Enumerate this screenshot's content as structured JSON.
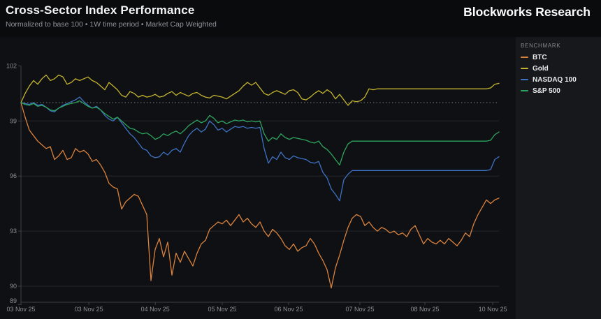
{
  "header": {
    "title": "Cross-Sector Index Performance",
    "subtitle": "Normalized to base 100 • 1W time period • Market Cap Weighted",
    "brand": "Blockworks Research"
  },
  "legend": {
    "title": "BENCHMARK"
  },
  "colors": {
    "page_bg": "#0a0b0c",
    "card_bg": "#17181b",
    "plot_bg": "#0f1013",
    "grid": "#24262b",
    "baseline": "#797c81",
    "axis": "#3e4146",
    "tick_text": "#8b8e94"
  },
  "chart_data": {
    "type": "line",
    "title": "Cross-Sector Index Performance",
    "subtitle": "Normalized to base 100 • 1W time period • Market Cap Weighted",
    "normalized_base": 100,
    "time_period": "1W",
    "weighting": "Market Cap Weighted",
    "grid": true,
    "legend_position": "right",
    "legend_title": "BENCHMARK",
    "ylim": [
      89,
      102
    ],
    "y_ticks": [
      102,
      99,
      96,
      93,
      90,
      89
    ],
    "baseline_value": 100,
    "x_ticks": [
      {
        "label": "03 Nov 25",
        "f": 0.0
      },
      {
        "label": "03 Nov 25",
        "f": 0.142
      },
      {
        "label": "04 Nov 25",
        "f": 0.281
      },
      {
        "label": "05 Nov 25",
        "f": 0.421
      },
      {
        "label": "06 Nov 25",
        "f": 0.56
      },
      {
        "label": "07 Nov 25",
        "f": 0.709
      },
      {
        "label": "08 Nov 25",
        "f": 0.845
      },
      {
        "label": "10 Nov 25",
        "f": 0.987
      }
    ],
    "series": [
      {
        "name": "BTC",
        "color": "#d9823d",
        "values": [
          100.0,
          99.2,
          98.5,
          98.2,
          97.9,
          97.7,
          97.5,
          97.6,
          96.9,
          97.1,
          97.4,
          96.9,
          97.0,
          97.5,
          97.3,
          97.4,
          97.2,
          96.8,
          96.9,
          96.6,
          96.2,
          95.6,
          95.4,
          95.3,
          94.2,
          94.6,
          94.8,
          95.0,
          94.9,
          94.4,
          93.9,
          90.3,
          92.0,
          92.6,
          91.6,
          92.4,
          90.6,
          91.8,
          91.3,
          91.9,
          91.5,
          91.1,
          91.8,
          92.3,
          92.5,
          93.1,
          93.3,
          93.5,
          93.4,
          93.6,
          93.3,
          93.6,
          93.9,
          93.5,
          93.7,
          93.4,
          93.2,
          93.5,
          93.0,
          92.7,
          93.1,
          92.9,
          92.6,
          92.2,
          92.0,
          92.3,
          91.9,
          92.1,
          92.2,
          92.6,
          92.3,
          91.8,
          91.4,
          90.9,
          89.9,
          91.0,
          91.7,
          92.5,
          93.2,
          93.7,
          93.9,
          93.8,
          93.3,
          93.5,
          93.2,
          93.0,
          93.2,
          93.1,
          92.9,
          93.0,
          92.8,
          92.9,
          92.7,
          93.1,
          93.3,
          92.8,
          92.3,
          92.6,
          92.4,
          92.3,
          92.5,
          92.3,
          92.6,
          92.4,
          92.2,
          92.5,
          92.9,
          92.7,
          93.4,
          93.9,
          94.3,
          94.7,
          94.5,
          94.7,
          94.8
        ]
      },
      {
        "name": "Gold",
        "color": "#c4b42f",
        "values": [
          100.0,
          100.5,
          100.9,
          101.2,
          101.0,
          101.3,
          101.5,
          101.2,
          101.3,
          101.5,
          101.4,
          101.0,
          101.1,
          101.3,
          101.2,
          101.3,
          101.4,
          101.2,
          101.1,
          100.9,
          100.7,
          101.1,
          100.9,
          100.7,
          100.4,
          100.3,
          100.6,
          100.5,
          100.3,
          100.4,
          100.3,
          100.35,
          100.45,
          100.3,
          100.35,
          100.5,
          100.6,
          100.4,
          100.55,
          100.45,
          100.35,
          100.5,
          100.55,
          100.4,
          100.3,
          100.25,
          100.4,
          100.35,
          100.3,
          100.2,
          100.35,
          100.5,
          100.65,
          100.9,
          101.1,
          100.95,
          101.1,
          100.8,
          100.5,
          100.4,
          100.55,
          100.65,
          100.55,
          100.45,
          100.65,
          100.7,
          100.55,
          100.2,
          100.15,
          100.3,
          100.5,
          100.65,
          100.5,
          100.7,
          100.55,
          100.2,
          100.45,
          100.15,
          99.85,
          100.1,
          100.05,
          100.1,
          100.3,
          100.75,
          100.7,
          100.75,
          100.75,
          100.75,
          100.75,
          100.75,
          100.75,
          100.75,
          100.75,
          100.75,
          100.75,
          100.75,
          100.75,
          100.75,
          100.75,
          100.75,
          100.75,
          100.75,
          100.75,
          100.75,
          100.75,
          100.75,
          100.75,
          100.75,
          100.75,
          100.75,
          100.75,
          100.75,
          100.8,
          101.0,
          101.05
        ]
      },
      {
        "name": "NASDAQ 100",
        "color": "#3e72c4",
        "values": [
          100.0,
          99.95,
          99.9,
          100.0,
          99.85,
          99.9,
          99.75,
          99.55,
          99.5,
          99.7,
          99.85,
          99.95,
          100.05,
          100.15,
          100.3,
          100.05,
          99.85,
          99.7,
          99.8,
          99.6,
          99.3,
          99.1,
          99.0,
          99.2,
          98.9,
          98.6,
          98.3,
          98.1,
          97.8,
          97.5,
          97.4,
          97.1,
          97.0,
          97.05,
          97.3,
          97.15,
          97.4,
          97.5,
          97.3,
          97.8,
          98.2,
          98.45,
          98.6,
          98.4,
          98.55,
          99.0,
          98.8,
          98.5,
          98.6,
          98.4,
          98.55,
          98.7,
          98.65,
          98.7,
          98.6,
          98.65,
          98.6,
          98.65,
          97.5,
          96.7,
          97.05,
          96.9,
          97.3,
          97.0,
          96.9,
          97.1,
          97.0,
          96.95,
          96.9,
          96.75,
          96.7,
          96.8,
          96.2,
          95.9,
          95.3,
          95.0,
          94.65,
          95.8,
          96.1,
          96.3,
          96.3,
          96.3,
          96.3,
          96.3,
          96.3,
          96.3,
          96.3,
          96.3,
          96.3,
          96.3,
          96.3,
          96.3,
          96.3,
          96.3,
          96.3,
          96.3,
          96.3,
          96.3,
          96.3,
          96.3,
          96.3,
          96.3,
          96.3,
          96.3,
          96.3,
          96.3,
          96.3,
          96.3,
          96.3,
          96.3,
          96.3,
          96.3,
          96.35,
          96.9,
          97.05
        ]
      },
      {
        "name": "S&P 500",
        "color": "#2da45e",
        "values": [
          100.0,
          99.9,
          99.85,
          99.95,
          99.8,
          99.85,
          99.75,
          99.6,
          99.55,
          99.7,
          99.8,
          99.9,
          99.95,
          100.0,
          100.1,
          99.95,
          99.8,
          99.7,
          99.75,
          99.6,
          99.4,
          99.25,
          99.1,
          99.2,
          99.0,
          98.8,
          98.6,
          98.55,
          98.4,
          98.3,
          98.35,
          98.2,
          98.0,
          98.1,
          98.3,
          98.2,
          98.35,
          98.45,
          98.3,
          98.5,
          98.75,
          98.9,
          99.05,
          98.9,
          99.0,
          99.3,
          99.15,
          98.9,
          99.0,
          98.85,
          98.95,
          99.05,
          99.0,
          99.05,
          98.95,
          99.0,
          98.95,
          99.0,
          98.3,
          97.9,
          98.1,
          98.0,
          98.3,
          98.1,
          98.0,
          98.1,
          98.05,
          98.0,
          97.95,
          97.85,
          97.8,
          97.9,
          97.6,
          97.45,
          97.2,
          96.9,
          96.6,
          97.3,
          97.75,
          97.9,
          97.9,
          97.9,
          97.9,
          97.9,
          97.9,
          97.9,
          97.9,
          97.9,
          97.9,
          97.9,
          97.9,
          97.9,
          97.9,
          97.9,
          97.9,
          97.9,
          97.9,
          97.9,
          97.9,
          97.9,
          97.9,
          97.9,
          97.9,
          97.9,
          97.9,
          97.9,
          97.9,
          97.9,
          97.9,
          97.9,
          97.9,
          97.9,
          97.95,
          98.25,
          98.4
        ]
      }
    ]
  }
}
